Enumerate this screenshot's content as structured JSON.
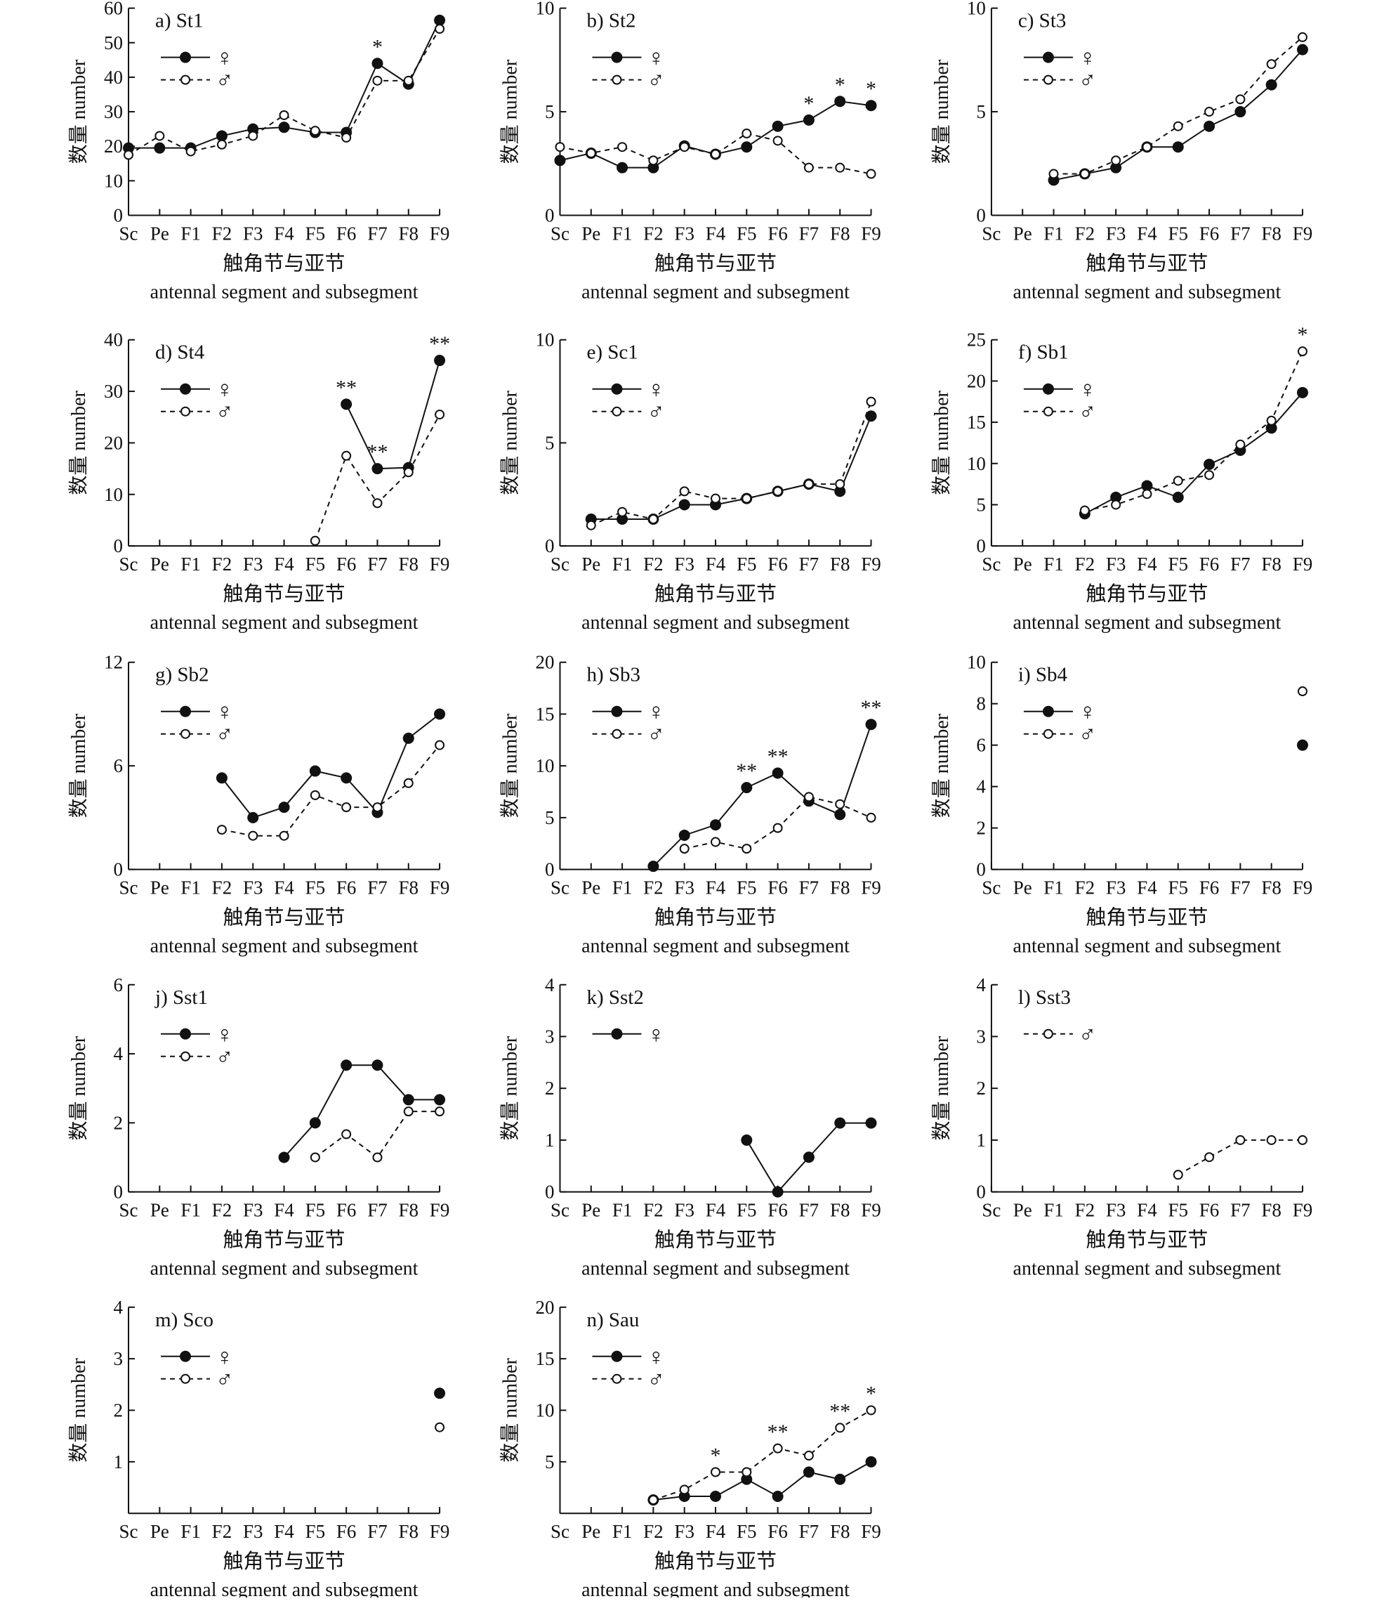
{
  "figure": {
    "legend": {
      "female": "♀",
      "male": "♂"
    },
    "ylabel": "数量 number",
    "xlabel_zh": "触角节与亚节",
    "xlabel_en": "antennal segment and subsegment"
  },
  "chart_data": [
    {
      "id": "a",
      "title": "a) St1",
      "type": "line",
      "categories": [
        "Sc",
        "Pe",
        "F1",
        "F2",
        "F3",
        "F4",
        "F5",
        "F6",
        "F7",
        "F8",
        "F9"
      ],
      "ylim": [
        0,
        60
      ],
      "yticks": [
        0,
        10,
        20,
        30,
        40,
        50,
        60
      ],
      "legend": [
        "female",
        "male"
      ],
      "series": [
        {
          "name": "♀",
          "values": [
            19.5,
            19.5,
            19.5,
            23,
            25,
            25.5,
            24,
            24,
            44,
            38,
            56.5
          ]
        },
        {
          "name": "♂",
          "values": [
            17.5,
            23,
            18.5,
            20.5,
            23,
            29,
            24.5,
            22.5,
            39,
            39,
            54
          ]
        }
      ],
      "significance": [
        {
          "category": "F7",
          "label": "*"
        }
      ]
    },
    {
      "id": "b",
      "title": "b) St2",
      "type": "line",
      "categories": [
        "Sc",
        "Pe",
        "F1",
        "F2",
        "F3",
        "F4",
        "F5",
        "F6",
        "F7",
        "F8",
        "F9"
      ],
      "ylim": [
        0,
        10
      ],
      "yticks": [
        0,
        5,
        10
      ],
      "legend": [
        "female",
        "male"
      ],
      "series": [
        {
          "name": "♀",
          "values": [
            2.65,
            3,
            2.3,
            2.3,
            3.35,
            2.95,
            3.3,
            4.3,
            4.6,
            5.5,
            5.3
          ]
        },
        {
          "name": "♂",
          "values": [
            3.3,
            3,
            3.3,
            2.65,
            3.3,
            2.95,
            3.95,
            3.6,
            2.3,
            2.3,
            2
          ]
        }
      ],
      "significance": [
        {
          "category": "F7",
          "label": "*"
        },
        {
          "category": "F8",
          "label": "*"
        },
        {
          "category": "F9",
          "label": "*"
        }
      ]
    },
    {
      "id": "c",
      "title": "c) St3",
      "type": "line",
      "categories": [
        "Sc",
        "Pe",
        "F1",
        "F2",
        "F3",
        "F4",
        "F5",
        "F6",
        "F7",
        "F8",
        "F9"
      ],
      "ylim": [
        0,
        10
      ],
      "yticks": [
        0,
        5,
        10
      ],
      "legend": [
        "female",
        "male"
      ],
      "series": [
        {
          "name": "♀",
          "values": [
            null,
            null,
            1.7,
            2,
            2.3,
            3.3,
            3.3,
            4.3,
            5,
            6.3,
            8
          ]
        },
        {
          "name": "♂",
          "values": [
            null,
            null,
            2,
            2,
            2.65,
            3.3,
            4.3,
            5,
            5.6,
            7.3,
            8.6
          ]
        }
      ],
      "significance": []
    },
    {
      "id": "d",
      "title": "d) St4",
      "type": "line",
      "categories": [
        "Sc",
        "Pe",
        "F1",
        "F2",
        "F3",
        "F4",
        "F5",
        "F6",
        "F7",
        "F8",
        "F9"
      ],
      "ylim": [
        0,
        40
      ],
      "yticks": [
        0,
        10,
        20,
        30,
        40
      ],
      "legend": [
        "female",
        "male"
      ],
      "series": [
        {
          "name": "♀",
          "values": [
            null,
            null,
            null,
            null,
            null,
            null,
            null,
            27.5,
            15,
            15.2,
            36
          ]
        },
        {
          "name": "♂",
          "values": [
            null,
            null,
            null,
            null,
            null,
            null,
            1,
            17.5,
            8.3,
            14.3,
            25.5
          ]
        }
      ],
      "significance": [
        {
          "category": "F6",
          "label": "**"
        },
        {
          "category": "F7",
          "label": "**"
        },
        {
          "category": "F9",
          "label": "**"
        }
      ]
    },
    {
      "id": "e",
      "title": "e) Sc1",
      "type": "line",
      "categories": [
        "Sc",
        "Pe",
        "F1",
        "F2",
        "F3",
        "F4",
        "F5",
        "F6",
        "F7",
        "F8",
        "F9"
      ],
      "ylim": [
        0,
        10
      ],
      "yticks": [
        0,
        5,
        10
      ],
      "legend": [
        "female",
        "male"
      ],
      "series": [
        {
          "name": "♀",
          "values": [
            null,
            1.3,
            1.3,
            1.3,
            2,
            2,
            2.3,
            2.65,
            3,
            2.65,
            6.3
          ]
        },
        {
          "name": "♂",
          "values": [
            null,
            1,
            1.65,
            1.3,
            2.65,
            2.3,
            2.3,
            2.65,
            3,
            3,
            7
          ]
        }
      ],
      "significance": []
    },
    {
      "id": "f",
      "title": "f) Sb1",
      "type": "line",
      "categories": [
        "Sc",
        "Pe",
        "F1",
        "F2",
        "F3",
        "F4",
        "F5",
        "F6",
        "F7",
        "F8",
        "F9"
      ],
      "ylim": [
        0,
        25
      ],
      "yticks": [
        0,
        5,
        10,
        15,
        20,
        25
      ],
      "legend": [
        "female",
        "male"
      ],
      "series": [
        {
          "name": "♀",
          "values": [
            null,
            null,
            null,
            3.9,
            5.9,
            7.3,
            5.9,
            9.9,
            11.6,
            14.3,
            18.6
          ]
        },
        {
          "name": "♂",
          "values": [
            null,
            null,
            null,
            4.3,
            5,
            6.3,
            7.9,
            8.6,
            12.3,
            15.2,
            23.6
          ]
        }
      ],
      "significance": [
        {
          "category": "F9",
          "label": "*"
        }
      ]
    },
    {
      "id": "g",
      "title": "g) Sb2",
      "type": "line",
      "categories": [
        "Sc",
        "Pe",
        "F1",
        "F2",
        "F3",
        "F4",
        "F5",
        "F6",
        "F7",
        "F8",
        "F9"
      ],
      "ylim": [
        0,
        12
      ],
      "yticks": [
        0,
        6,
        12
      ],
      "legend": [
        "female",
        "male"
      ],
      "series": [
        {
          "name": "♀",
          "values": [
            null,
            null,
            null,
            5.3,
            3,
            3.6,
            5.7,
            5.3,
            3.3,
            7.6,
            9
          ]
        },
        {
          "name": "♂",
          "values": [
            null,
            null,
            null,
            2.3,
            1.95,
            1.95,
            4.3,
            3.6,
            3.6,
            5,
            7.2
          ]
        }
      ],
      "significance": []
    },
    {
      "id": "h",
      "title": "h) Sb3",
      "type": "line",
      "categories": [
        "Sc",
        "Pe",
        "F1",
        "F2",
        "F3",
        "F4",
        "F5",
        "F6",
        "F7",
        "F8",
        "F9"
      ],
      "ylim": [
        0,
        20
      ],
      "yticks": [
        0,
        5,
        10,
        15,
        20
      ],
      "legend": [
        "female",
        "male"
      ],
      "series": [
        {
          "name": "♀",
          "values": [
            null,
            null,
            null,
            0.3,
            3.3,
            4.3,
            7.9,
            9.3,
            6.6,
            5.3,
            14
          ]
        },
        {
          "name": "♂",
          "values": [
            null,
            null,
            null,
            null,
            2,
            2.65,
            2,
            4,
            7,
            6.3,
            5
          ]
        }
      ],
      "significance": [
        {
          "category": "F5",
          "label": "**"
        },
        {
          "category": "F6",
          "label": "**"
        },
        {
          "category": "F9",
          "label": "**"
        }
      ]
    },
    {
      "id": "i",
      "title": "i) Sb4",
      "type": "line",
      "categories": [
        "Sc",
        "Pe",
        "F1",
        "F2",
        "F3",
        "F4",
        "F5",
        "F6",
        "F7",
        "F8",
        "F9"
      ],
      "ylim": [
        0,
        10
      ],
      "yticks": [
        0,
        2,
        4,
        6,
        8,
        10
      ],
      "legend": [
        "female",
        "male"
      ],
      "series": [
        {
          "name": "♀",
          "values": [
            null,
            null,
            null,
            null,
            null,
            null,
            null,
            null,
            null,
            null,
            6
          ]
        },
        {
          "name": "♂",
          "values": [
            null,
            null,
            null,
            null,
            null,
            null,
            null,
            null,
            null,
            null,
            8.6
          ]
        }
      ],
      "significance": []
    },
    {
      "id": "j",
      "title": "j) Sst1",
      "type": "line",
      "categories": [
        "Sc",
        "Pe",
        "F1",
        "F2",
        "F3",
        "F4",
        "F5",
        "F6",
        "F7",
        "F8",
        "F9"
      ],
      "ylim": [
        0,
        6
      ],
      "yticks": [
        0,
        2,
        4,
        6
      ],
      "legend": [
        "female",
        "male"
      ],
      "series": [
        {
          "name": "♀",
          "values": [
            null,
            null,
            null,
            null,
            null,
            1,
            2,
            3.67,
            3.67,
            2.67,
            2.67
          ]
        },
        {
          "name": "♂",
          "values": [
            null,
            null,
            null,
            null,
            null,
            null,
            1,
            1.67,
            1,
            2.33,
            2.33
          ]
        }
      ],
      "significance": []
    },
    {
      "id": "k",
      "title": "k) Sst2",
      "type": "line",
      "categories": [
        "Sc",
        "Pe",
        "F1",
        "F2",
        "F3",
        "F4",
        "F5",
        "F6",
        "F7",
        "F8",
        "F9"
      ],
      "ylim": [
        0,
        4
      ],
      "yticks": [
        0,
        1,
        2,
        3,
        4
      ],
      "legend": [
        "female"
      ],
      "series": [
        {
          "name": "♀",
          "values": [
            null,
            null,
            null,
            null,
            null,
            null,
            1,
            0,
            0.67,
            1.33,
            1.33
          ]
        }
      ],
      "significance": []
    },
    {
      "id": "l",
      "title": "l) Sst3",
      "type": "line",
      "categories": [
        "Sc",
        "Pe",
        "F1",
        "F2",
        "F3",
        "F4",
        "F5",
        "F6",
        "F7",
        "F8",
        "F9"
      ],
      "ylim": [
        0,
        4
      ],
      "yticks": [
        0,
        1,
        2,
        3,
        4
      ],
      "legend": [
        "male"
      ],
      "series": [
        {
          "name": "♂",
          "values": [
            null,
            null,
            null,
            null,
            null,
            null,
            0.33,
            0.67,
            1,
            1,
            1
          ]
        }
      ],
      "significance": []
    },
    {
      "id": "m",
      "title": "m) Sco",
      "type": "line",
      "categories": [
        "Sc",
        "Pe",
        "F1",
        "F2",
        "F3",
        "F4",
        "F5",
        "F6",
        "F7",
        "F8",
        "F9"
      ],
      "ylim": [
        0,
        4
      ],
      "yticks": [
        1,
        2,
        3,
        4
      ],
      "legend": [
        "female",
        "male"
      ],
      "series": [
        {
          "name": "♀",
          "values": [
            null,
            null,
            null,
            null,
            null,
            null,
            null,
            null,
            null,
            null,
            2.33
          ]
        },
        {
          "name": "♂",
          "values": [
            null,
            null,
            null,
            null,
            null,
            null,
            null,
            null,
            null,
            null,
            1.67
          ]
        }
      ],
      "significance": []
    },
    {
      "id": "n",
      "title": "n) Sau",
      "type": "line",
      "categories": [
        "Sc",
        "Pe",
        "F1",
        "F2",
        "F3",
        "F4",
        "F5",
        "F6",
        "F7",
        "F8",
        "F9"
      ],
      "ylim": [
        0,
        20
      ],
      "yticks": [
        5,
        10,
        15,
        20
      ],
      "legend": [
        "female",
        "male"
      ],
      "series": [
        {
          "name": "♀",
          "values": [
            null,
            null,
            null,
            1.3,
            1.65,
            1.65,
            3.3,
            1.65,
            4,
            3.3,
            5
          ]
        },
        {
          "name": "♂",
          "values": [
            null,
            null,
            null,
            1.3,
            2.3,
            4,
            4,
            6.3,
            5.6,
            8.3,
            10
          ]
        }
      ],
      "significance": [
        {
          "category": "F4",
          "label": "*"
        },
        {
          "category": "F6",
          "label": "**"
        },
        {
          "category": "F8",
          "label": "**"
        },
        {
          "category": "F9",
          "label": "*"
        }
      ]
    }
  ]
}
